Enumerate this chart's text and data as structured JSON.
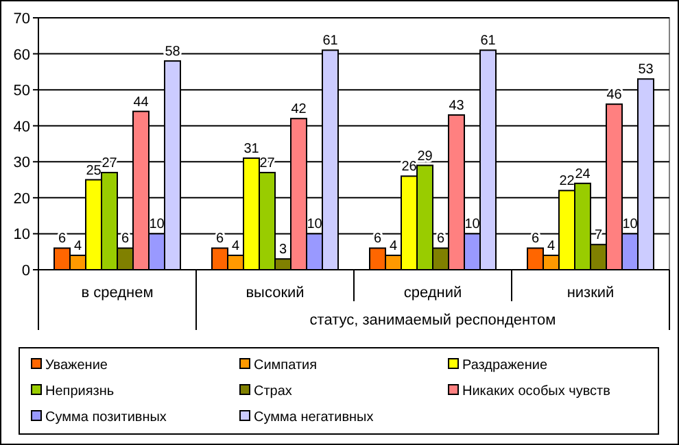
{
  "chart_data": {
    "type": "bar",
    "categories": [
      "в среднем",
      "высокий",
      "средний",
      "низкий"
    ],
    "annotations": [
      "статус, занимаемый респондентом"
    ],
    "series": [
      {
        "name": "Уважение",
        "color": "#ff6600",
        "values": [
          6,
          6,
          6,
          6
        ]
      },
      {
        "name": "Симпатия",
        "color": "#ff9900",
        "values": [
          4,
          4,
          4,
          4
        ]
      },
      {
        "name": "Раздражение",
        "color": "#ffff00",
        "values": [
          25,
          31,
          26,
          22
        ]
      },
      {
        "name": "Неприязнь",
        "color": "#99cc00",
        "values": [
          27,
          27,
          29,
          24
        ]
      },
      {
        "name": "Страх",
        "color": "#808000",
        "values": [
          6,
          3,
          6,
          7
        ]
      },
      {
        "name": "Никаких особых чувств",
        "color": "#ff8080",
        "values": [
          44,
          42,
          43,
          46
        ]
      },
      {
        "name": "Сумма позитивных",
        "color": "#9999ff",
        "values": [
          10,
          10,
          10,
          10
        ]
      },
      {
        "name": "Сумма негативных",
        "color": "#ccccff",
        "values": [
          58,
          61,
          61,
          53
        ]
      }
    ],
    "ylim": [
      0,
      70
    ],
    "yticks": [
      0,
      10,
      20,
      30,
      40,
      50,
      60,
      70
    ],
    "grid": "y",
    "data_labels": true,
    "legend": "bottom"
  }
}
